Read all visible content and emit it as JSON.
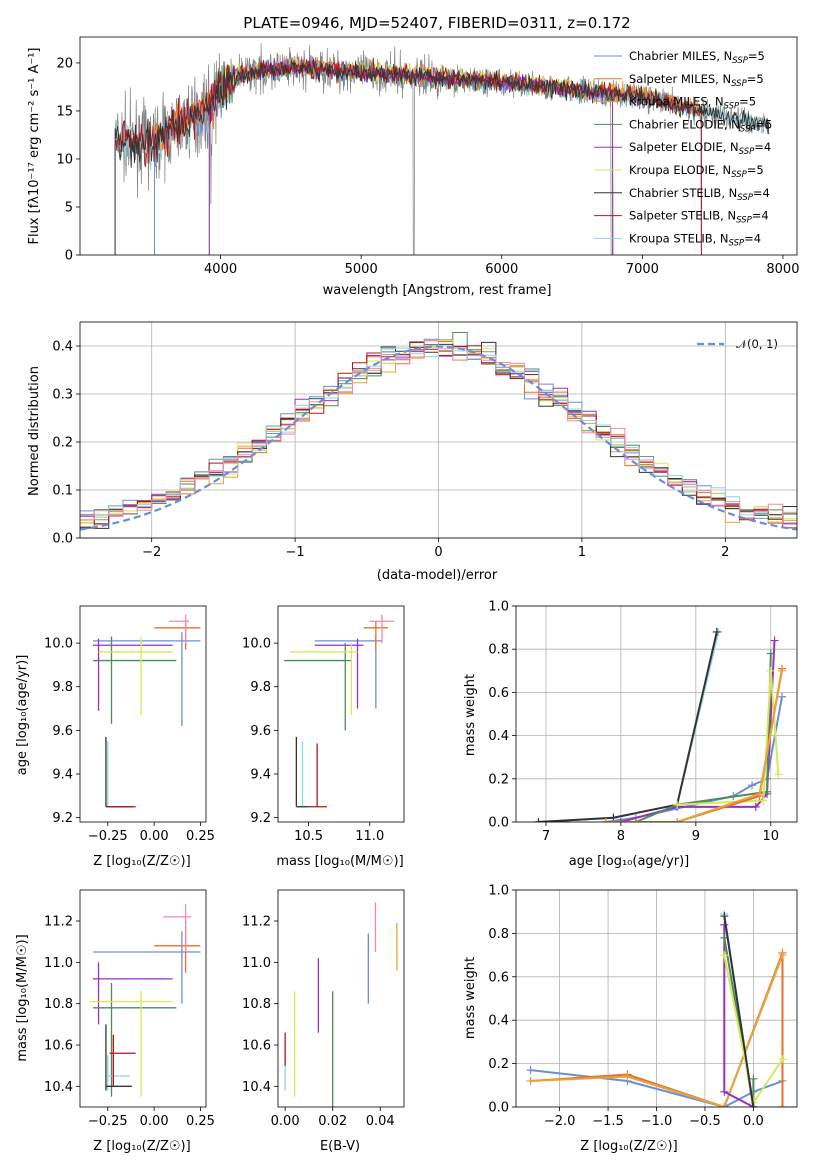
{
  "title": "PLATE=0946, MJD=52407, FIBERID=0311, z=0.172",
  "colors": {
    "chabrier_miles": "#6a8fd8",
    "salpeter_miles": "#e8702a",
    "kroupa_miles": "#e8a43a",
    "chabrier_elodie": "#4f8a5b",
    "salpeter_elodie": "#9b2fc0",
    "kroupa_elodie": "#d6e85a",
    "chabrier_stelib": "#333333",
    "salpeter_stelib": "#b01818",
    "kroupa_stelib": "#8fd6e0",
    "data": "#808080",
    "pink": "#f08aa8",
    "gauss": "#6a8fd8"
  },
  "chart_data": [
    {
      "type": "line",
      "panel": "spectrum",
      "title": "PLATE=0946, MJD=52407, FIBERID=0311, z=0.172",
      "xlabel": "wavelength [Angstrom, rest frame]",
      "ylabel": "Flux [f",
      "ylabel_full": "Flux [fλ10⁻¹⁷ erg cm⁻² s⁻¹ A⁻¹]",
      "xlim": [
        3000,
        8100
      ],
      "ylim": [
        0,
        22.7
      ],
      "xticks": [
        "4000",
        "5000",
        "6000",
        "7000",
        "8000"
      ],
      "yticks": [
        "0",
        "5",
        "10",
        "15",
        "20"
      ],
      "legend": [
        {
          "label": "Chabrier MILES, N",
          "sub": "SSP",
          "tail": "=5"
        },
        {
          "label": "Salpeter MILES, N",
          "sub": "SSP",
          "tail": "=5"
        },
        {
          "label": "Kroupa MILES, N",
          "sub": "SSP",
          "tail": "=5"
        },
        {
          "label": "Chabrier ELODIE, N",
          "sub": "SSP",
          "tail": "=5"
        },
        {
          "label": "Salpeter ELODIE, N",
          "sub": "SSP",
          "tail": "=4"
        },
        {
          "label": "Kroupa ELODIE, N",
          "sub": "SSP",
          "tail": "=5"
        },
        {
          "label": "Chabrier STELIB, N",
          "sub": "SSP",
          "tail": "=4"
        },
        {
          "label": "Salpeter STELIB, N",
          "sub": "SSP",
          "tail": "=4"
        },
        {
          "label": "Kroupa STELIB, N",
          "sub": "SSP",
          "tail": "=4"
        }
      ],
      "continuum": {
        "x": [
          3250,
          3500,
          3700,
          3900,
          4000,
          4100,
          4200,
          4400,
          4600,
          4800,
          5000,
          5200,
          5500,
          6000,
          6500,
          7000,
          7400,
          7900
        ],
        "y": [
          12.0,
          11.5,
          13.5,
          15.0,
          17.0,
          18.5,
          19.0,
          19.3,
          19.5,
          19.2,
          19.0,
          18.8,
          18.5,
          18.0,
          17.2,
          16.5,
          15.0,
          13.5
        ]
      }
    },
    {
      "type": "line",
      "panel": "residual-distribution",
      "xlabel": "(data-model)/error",
      "ylabel": "Normed distribution",
      "xlim": [
        -2.5,
        2.5
      ],
      "ylim": [
        0,
        0.45
      ],
      "xticks": [
        "−2",
        "−1",
        "0",
        "1",
        "2"
      ],
      "yticks": [
        "0.0",
        "0.1",
        "0.2",
        "0.3",
        "0.4"
      ],
      "legend": [
        {
          "label": "𝒩(0, 1)"
        }
      ],
      "bin_width": 0.1,
      "reference_normal": {
        "mean": 0,
        "sigma": 1
      }
    },
    {
      "type": "scatter",
      "panel": "age-vs-Z",
      "xlabel": "Z [log₁₀(Z/Z☉)]",
      "ylabel": "age  [log₁₀(age/yr)]",
      "xlim": [
        -0.4,
        0.28
      ],
      "ylim": [
        9.18,
        10.17
      ],
      "xticks": [
        "−0.25",
        "0.00",
        "0.25"
      ],
      "yticks": [
        "9.2",
        "9.4",
        "9.6",
        "9.8",
        "10.0"
      ]
    },
    {
      "type": "scatter",
      "panel": "age-vs-mass",
      "xlabel": "mass [log₁₀(M/M☉)]",
      "xlim": [
        10.25,
        11.28
      ],
      "ylim": [
        9.18,
        10.17
      ],
      "xticks": [
        "10.5",
        "11.0"
      ],
      "yticks": [
        "9.2",
        "9.4",
        "9.6",
        "9.8",
        "10.0"
      ]
    },
    {
      "type": "line",
      "panel": "mass-weight-vs-age",
      "xlabel": "age  [log₁₀(age/yr)]",
      "ylabel": "mass weight",
      "xlim": [
        6.6,
        10.35
      ],
      "ylim": [
        0,
        1
      ],
      "xticks": [
        "7",
        "8",
        "9",
        "10"
      ],
      "yticks": [
        "0.0",
        "0.2",
        "0.4",
        "0.6",
        "0.8",
        "1.0"
      ],
      "series": [
        {
          "key": "kroupa_stelib",
          "x": [
            6.9,
            7.9,
            8.75,
            9.3
          ],
          "y": [
            0.0,
            0.02,
            0.08,
            0.88
          ]
        },
        {
          "key": "chabrier_stelib",
          "x": [
            6.9,
            7.9,
            8.75,
            9.28
          ],
          "y": [
            0.0,
            0.02,
            0.08,
            0.88
          ]
        },
        {
          "key": "chabrier_miles",
          "x": [
            7.8,
            8.2,
            9.5,
            9.75,
            9.95,
            10.15
          ],
          "y": [
            0.0,
            0.02,
            0.12,
            0.17,
            0.2,
            0.58
          ]
        },
        {
          "key": "salpeter_elodie",
          "x": [
            8.0,
            8.75,
            9.8,
            9.95,
            10.05
          ],
          "y": [
            0.0,
            0.07,
            0.07,
            0.13,
            0.84
          ]
        },
        {
          "key": "chabrier_elodie",
          "x": [
            8.2,
            8.75,
            9.95,
            10.0
          ],
          "y": [
            0.0,
            0.08,
            0.14,
            0.78
          ]
        },
        {
          "key": "kroupa_elodie",
          "x": [
            8.75,
            9.9,
            10.0,
            10.1
          ],
          "y": [
            0.08,
            0.1,
            0.7,
            0.22
          ]
        },
        {
          "key": "salpeter_miles",
          "x": [
            7.8,
            8.75,
            9.85,
            10.15
          ],
          "y": [
            0.0,
            0.0,
            0.12,
            0.71
          ]
        },
        {
          "key": "kroupa_miles",
          "x": [
            7.8,
            8.75,
            9.85,
            10.15
          ],
          "y": [
            0.0,
            0.0,
            0.13,
            0.7
          ]
        }
      ]
    },
    {
      "type": "scatter",
      "panel": "mass-vs-Z",
      "xlabel": "Z [log₁₀(Z/Z☉)]",
      "ylabel": "mass [log₁₀(M/M☉)]",
      "xlim": [
        -0.4,
        0.28
      ],
      "ylim": [
        10.3,
        11.35
      ],
      "xticks": [
        "−0.25",
        "0.00",
        "0.25"
      ],
      "yticks": [
        "10.4",
        "10.6",
        "10.8",
        "11.0",
        "11.2"
      ]
    },
    {
      "type": "scatter",
      "panel": "mass-vs-EBV",
      "xlabel": "E(B-V)",
      "xlim": [
        -0.003,
        0.05
      ],
      "ylim": [
        10.3,
        11.35
      ],
      "xticks": [
        "0.00",
        "0.02",
        "0.04"
      ],
      "yticks": [
        "10.4",
        "10.6",
        "10.8",
        "11.0",
        "11.2"
      ]
    },
    {
      "type": "line",
      "panel": "mass-weight-vs-Z",
      "xlabel": "Z [log₁₀(Z/Z☉)]",
      "ylabel": "mass weight",
      "xlim": [
        -2.45,
        0.45
      ],
      "ylim": [
        0,
        1
      ],
      "xticks": [
        "−2.0",
        "−1.5",
        "−1.0",
        "−0.5",
        "0.0"
      ],
      "yticks": [
        "0.0",
        "0.2",
        "0.4",
        "0.6",
        "0.8",
        "1.0"
      ],
      "series": [
        {
          "key": "chabrier_miles",
          "x": [
            -2.3,
            -1.3,
            -0.3,
            0.0,
            0.3
          ],
          "y": [
            0.17,
            0.12,
            0.0,
            0.07,
            0.12
          ]
        },
        {
          "key": "salpeter_miles",
          "x": [
            -2.3,
            -1.3,
            -0.3,
            0.3,
            0.3
          ],
          "y": [
            0.12,
            0.15,
            0.0,
            0.71,
            0.0
          ]
        },
        {
          "key": "kroupa_miles",
          "x": [
            -2.3,
            -1.3,
            -0.3,
            0.3
          ],
          "y": [
            0.12,
            0.14,
            0.0,
            0.7
          ]
        },
        {
          "key": "salpeter_elodie",
          "x": [
            -0.3,
            -0.3,
            0.0
          ],
          "y": [
            0.84,
            0.07,
            0.0
          ]
        },
        {
          "key": "chabrier_elodie",
          "x": [
            -0.3,
            0.0,
            0.0
          ],
          "y": [
            0.78,
            0.0,
            0.13
          ]
        },
        {
          "key": "kroupa_elodie",
          "x": [
            -0.3,
            0.0,
            0.3
          ],
          "y": [
            0.7,
            0.02,
            0.22
          ]
        },
        {
          "key": "kroupa_stelib",
          "x": [
            -0.3,
            0.0
          ],
          "y": [
            0.89,
            0.0
          ]
        },
        {
          "key": "chabrier_stelib",
          "x": [
            -0.3,
            0.0
          ],
          "y": [
            0.88,
            0.0
          ]
        }
      ]
    }
  ]
}
